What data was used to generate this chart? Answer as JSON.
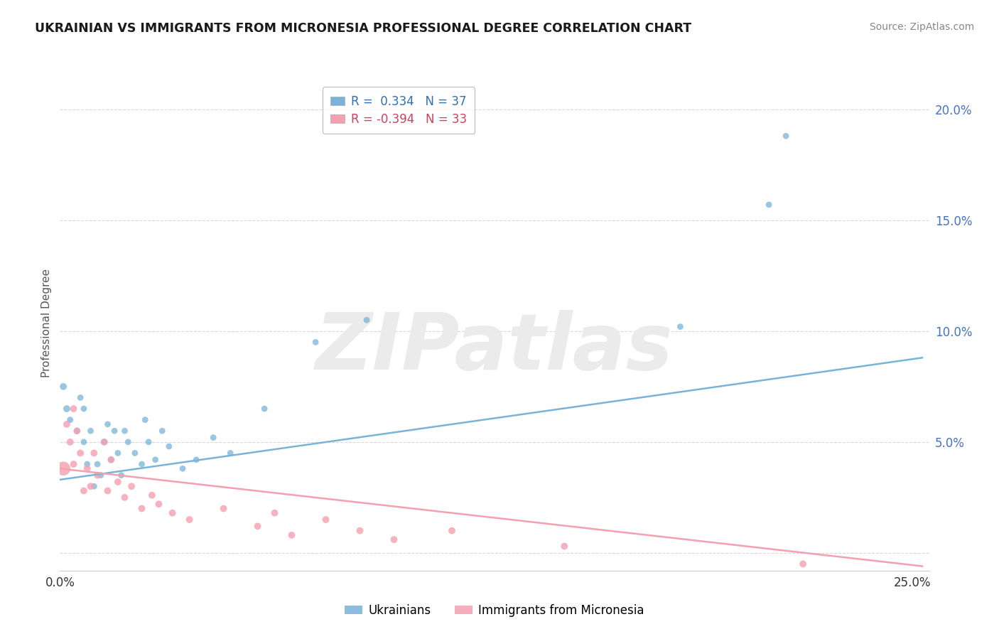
{
  "title": "UKRAINIAN VS IMMIGRANTS FROM MICRONESIA PROFESSIONAL DEGREE CORRELATION CHART",
  "source": "Source: ZipAtlas.com",
  "ylabel": "Professional Degree",
  "watermark": "ZIPatlas",
  "legend_blue_r": "0.334",
  "legend_blue_n": "37",
  "legend_pink_r": "-0.394",
  "legend_pink_n": "33",
  "legend_label_blue": "Ukrainians",
  "legend_label_pink": "Immigrants from Micronesia",
  "xlim": [
    0.0,
    0.255
  ],
  "ylim": [
    -0.008,
    0.215
  ],
  "xticks": [
    0.0,
    0.05,
    0.1,
    0.15,
    0.2,
    0.25
  ],
  "xticklabels": [
    "0.0%",
    "",
    "",
    "",
    "",
    "25.0%"
  ],
  "yticks": [
    0.0,
    0.05,
    0.1,
    0.15,
    0.2
  ],
  "yticklabels": [
    "",
    "5.0%",
    "10.0%",
    "15.0%",
    "20.0%"
  ],
  "blue_color": "#7ab3d9",
  "pink_color": "#f4a0b0",
  "blue_scatter": {
    "x": [
      0.001,
      0.002,
      0.003,
      0.005,
      0.006,
      0.007,
      0.007,
      0.008,
      0.009,
      0.01,
      0.011,
      0.012,
      0.013,
      0.014,
      0.015,
      0.016,
      0.017,
      0.018,
      0.019,
      0.02,
      0.022,
      0.024,
      0.025,
      0.026,
      0.028,
      0.03,
      0.032,
      0.036,
      0.04,
      0.045,
      0.05,
      0.06,
      0.075,
      0.09,
      0.182,
      0.208,
      0.213
    ],
    "y": [
      0.075,
      0.065,
      0.06,
      0.055,
      0.07,
      0.065,
      0.05,
      0.04,
      0.055,
      0.03,
      0.04,
      0.035,
      0.05,
      0.058,
      0.042,
      0.055,
      0.045,
      0.035,
      0.055,
      0.05,
      0.045,
      0.04,
      0.06,
      0.05,
      0.042,
      0.055,
      0.048,
      0.038,
      0.042,
      0.052,
      0.045,
      0.065,
      0.095,
      0.105,
      0.102,
      0.157,
      0.188
    ],
    "sizes": [
      50,
      50,
      40,
      40,
      40,
      40,
      40,
      40,
      40,
      40,
      40,
      40,
      40,
      40,
      40,
      40,
      40,
      40,
      40,
      40,
      40,
      40,
      40,
      40,
      40,
      40,
      40,
      40,
      40,
      40,
      40,
      40,
      40,
      40,
      40,
      40,
      40
    ]
  },
  "pink_scatter": {
    "x": [
      0.001,
      0.002,
      0.003,
      0.004,
      0.004,
      0.005,
      0.006,
      0.007,
      0.008,
      0.009,
      0.01,
      0.011,
      0.013,
      0.014,
      0.015,
      0.017,
      0.019,
      0.021,
      0.024,
      0.027,
      0.029,
      0.033,
      0.038,
      0.048,
      0.058,
      0.063,
      0.068,
      0.078,
      0.088,
      0.098,
      0.115,
      0.148,
      0.218
    ],
    "y": [
      0.038,
      0.058,
      0.05,
      0.065,
      0.04,
      0.055,
      0.045,
      0.028,
      0.038,
      0.03,
      0.045,
      0.035,
      0.05,
      0.028,
      0.042,
      0.032,
      0.025,
      0.03,
      0.02,
      0.026,
      0.022,
      0.018,
      0.015,
      0.02,
      0.012,
      0.018,
      0.008,
      0.015,
      0.01,
      0.006,
      0.01,
      0.003,
      -0.005
    ],
    "sizes": [
      200,
      50,
      50,
      50,
      50,
      50,
      50,
      50,
      50,
      50,
      50,
      50,
      50,
      50,
      50,
      50,
      50,
      50,
      50,
      50,
      50,
      50,
      50,
      50,
      50,
      50,
      50,
      50,
      50,
      50,
      50,
      50,
      50
    ]
  },
  "blue_line": {
    "x0": 0.0,
    "x1": 0.253,
    "y0": 0.033,
    "y1": 0.088
  },
  "pink_line": {
    "x0": 0.0,
    "x1": 0.253,
    "y0": 0.038,
    "y1": -0.006
  },
  "grid_color": "#d8d8d8",
  "spine_color": "#cccccc",
  "tick_color": "#4472c4",
  "title_color": "#1a1a1a",
  "source_color": "#888888",
  "ylabel_color": "#555555"
}
